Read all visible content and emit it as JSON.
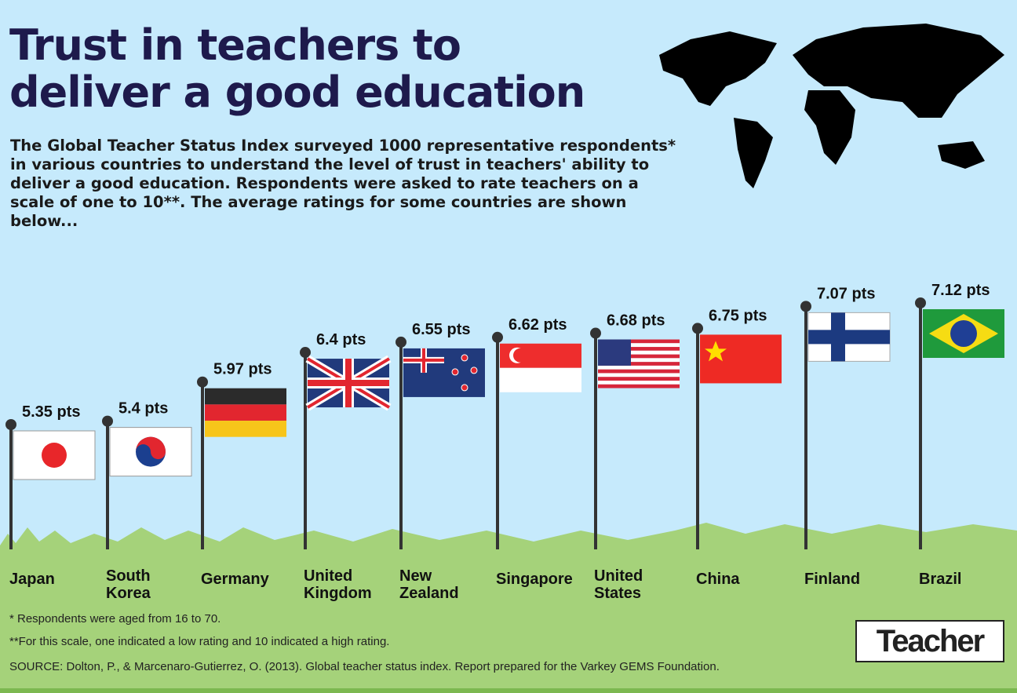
{
  "chart_data": {
    "type": "flagpole",
    "title": "Trust in teachers to deliver a good education",
    "subtitle": "The Global Teacher Status Index surveyed 1000 representative respondents* in various countries to understand the level of trust in teachers' ability to deliver a good education. Respondents were asked to rate teachers on a scale of one to 10**. The average ratings for some countries are shown below...",
    "categories": [
      "Japan",
      "South Korea",
      "Germany",
      "United Kingdom",
      "New Zealand",
      "Singapore",
      "United States",
      "China",
      "Finland",
      "Brazil"
    ],
    "values": [
      5.35,
      5.4,
      5.97,
      6.4,
      6.55,
      6.62,
      6.68,
      6.75,
      7.07,
      7.12
    ],
    "value_labels": [
      "5.35 pts",
      "5.4 pts",
      "5.97 pts",
      "6.4 pts",
      "6.55 pts",
      "6.62 pts",
      "6.68 pts",
      "6.75 pts",
      "7.07 pts",
      "7.12 pts"
    ],
    "color": "#333333",
    "footnotes": [
      "* Respondents were aged from 16 to 70.",
      "**For this scale, one indicated a low rating and 10 indicated a high rating."
    ],
    "source": "SOURCE: Dolton, P., & Marcenaro-Gutierrez, O. (2013). Global teacher status index. Report prepared for the Varkey GEMS Foundation.",
    "logo": "Teacher"
  }
}
